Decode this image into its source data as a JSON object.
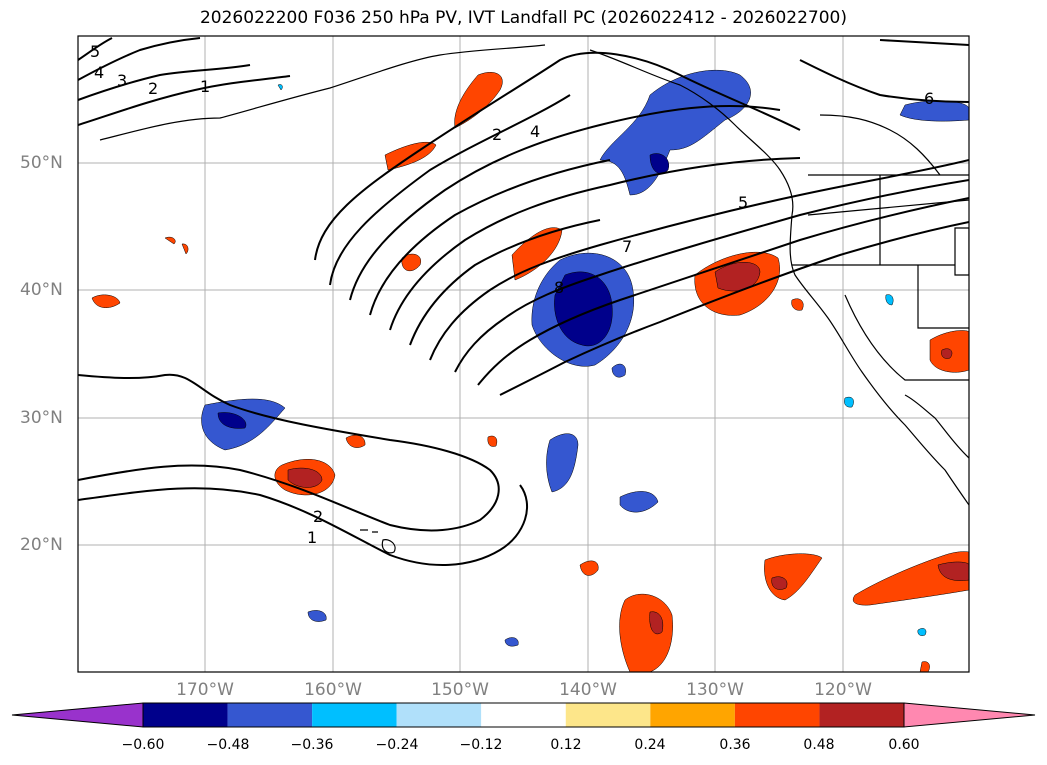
{
  "title": "2026022200 F036 250 hPa PV, IVT Landfall PC (2026022412 - 2026022700)",
  "lat_labels": [
    "50°N",
    "40°N",
    "30°N",
    "20°N"
  ],
  "lon_labels": [
    "170°W",
    "160°W",
    "150°W",
    "140°W",
    "130°W",
    "120°W"
  ],
  "contour_labels": [
    "5",
    "4",
    "3",
    "2",
    "1",
    "2",
    "4",
    "6",
    "5",
    "7",
    "8",
    "2",
    "1"
  ],
  "colorbar": {
    "ticks": [
      "−0.60",
      "−0.48",
      "−0.36",
      "−0.24",
      "−0.12",
      "0.12",
      "0.24",
      "0.36",
      "0.48",
      "0.60"
    ],
    "colors": [
      "#9932cc",
      "#00008b",
      "#3557d0",
      "#00bfff",
      "#b0e0fa",
      "#ffffff",
      "#fde68a",
      "#ffa500",
      "#ff4500",
      "#b22222",
      "#ff88b0"
    ]
  }
}
